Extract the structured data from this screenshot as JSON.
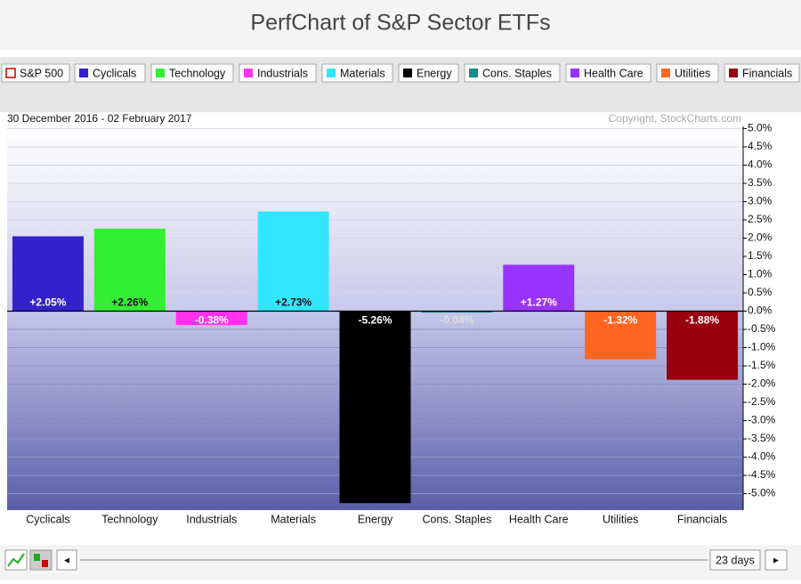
{
  "chart_data": {
    "type": "bar",
    "title": "PerfChart of S&P Sector ETFs",
    "subtitle": "30 December 2016 - 02 February 2017",
    "credit": "Copyright, StockCharts.com",
    "benchmark": {
      "name": "S&P 500",
      "color": "#cc0000"
    },
    "categories": [
      "Cyclicals",
      "Technology",
      "Industrials",
      "Materials",
      "Energy",
      "Cons. Staples",
      "Health Care",
      "Utilities",
      "Financials"
    ],
    "colors": [
      "#3322cc",
      "#33ee33",
      "#ff33ee",
      "#33e6ff",
      "#000000",
      "#1a8a8a",
      "#9933ff",
      "#ff6622",
      "#990010"
    ],
    "values": [
      2.05,
      2.26,
      -0.38,
      2.73,
      -5.26,
      -0.04,
      1.27,
      -1.32,
      -1.88
    ],
    "value_labels": [
      "+2.05%",
      "+2.26%",
      "-0.38%",
      "+2.73%",
      "-5.26%",
      "-0.04%",
      "+1.27%",
      "-1.32%",
      "-1.88%"
    ],
    "ylim": [
      -5.45,
      5.45
    ],
    "yticks": [
      {
        "value": 5,
        "label": "5.0%"
      },
      {
        "value": 4.5,
        "label": "4.5%"
      },
      {
        "value": 4,
        "label": "4.0%"
      },
      {
        "value": 3.5,
        "label": "3.5%"
      },
      {
        "value": 3,
        "label": "3.0%"
      },
      {
        "value": 2.5,
        "label": "2.5%"
      },
      {
        "value": 2,
        "label": "2.0%"
      },
      {
        "value": 1.5,
        "label": "1.5%"
      },
      {
        "value": 1,
        "label": "1.0%"
      },
      {
        "value": 0.5,
        "label": "0.5%"
      },
      {
        "value": 0,
        "label": "0.0%"
      },
      {
        "value": -0.5,
        "label": "-0.5%"
      },
      {
        "value": -1,
        "label": "-1.0%"
      },
      {
        "value": -1.5,
        "label": "-1.5%"
      },
      {
        "value": -2,
        "label": "-2.0%"
      },
      {
        "value": -2.5,
        "label": "-2.5%"
      },
      {
        "value": -3,
        "label": "-3.0%"
      },
      {
        "value": -3.5,
        "label": "-3.5%"
      },
      {
        "value": -4,
        "label": "-4.0%"
      },
      {
        "value": -4.5,
        "label": "-4.5%"
      },
      {
        "value": -5,
        "label": "-5.0%"
      }
    ],
    "grid": true,
    "period": "23 days"
  }
}
